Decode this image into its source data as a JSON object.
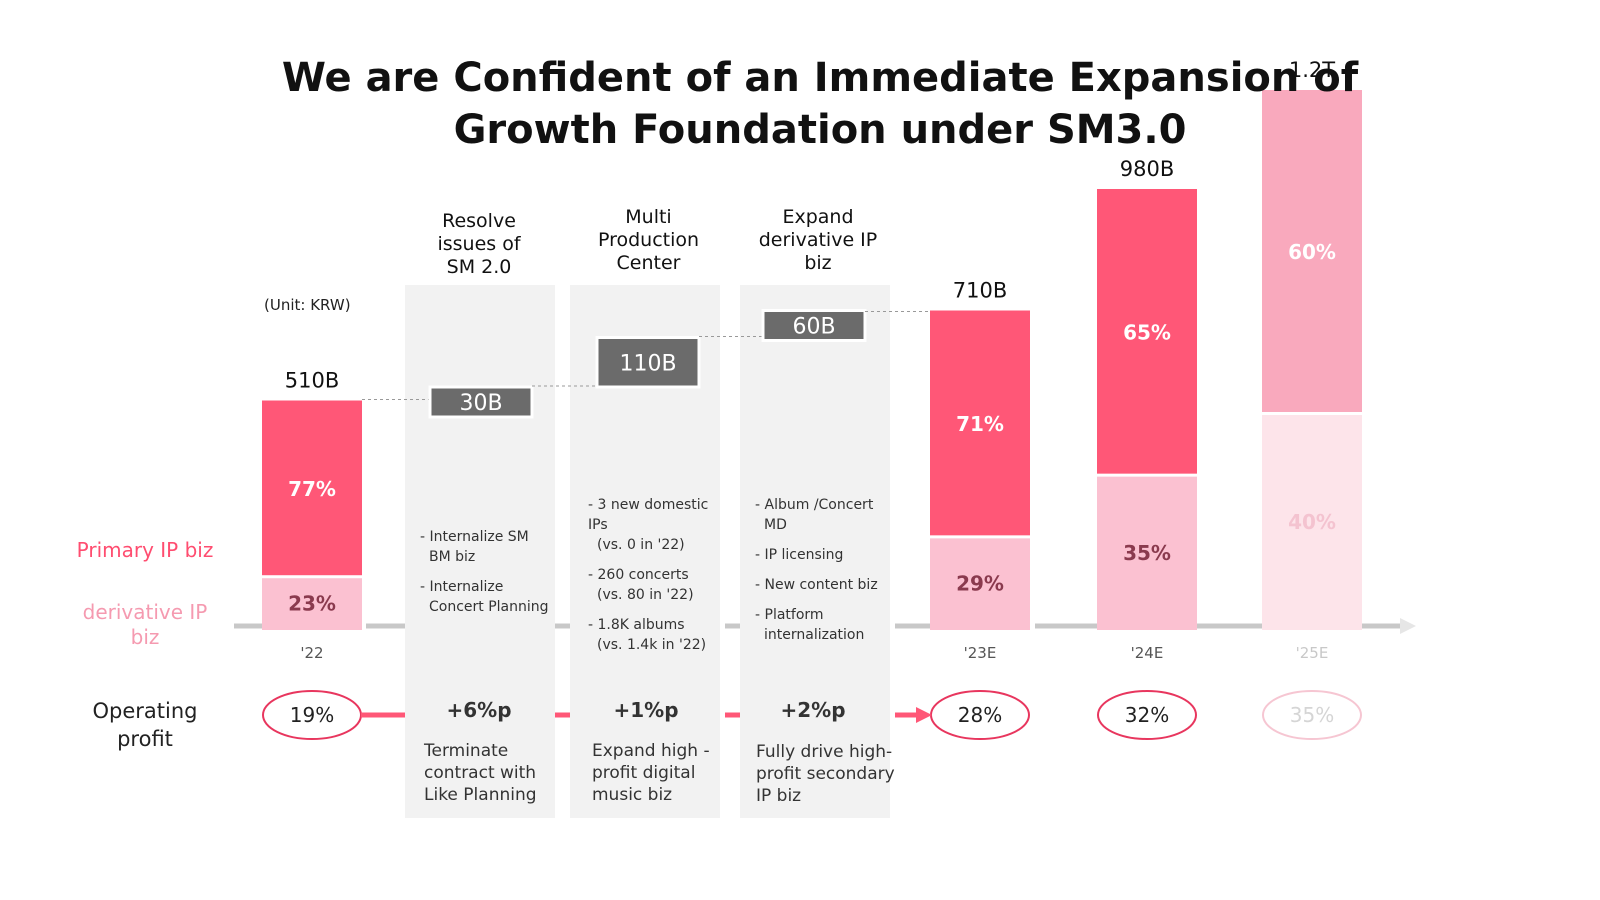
{
  "slide": {
    "title_line1": "We are Confident of an Immediate Expansion of",
    "title_line2": "Growth Foundation under SM3.0",
    "unit": "(Unit: KRW)",
    "legend_primary": "Primary IP biz",
    "legend_derivative_1": "derivative IP",
    "legend_derivative_2": "biz",
    "operating_profit_1": "Operating",
    "operating_profit_2": "profit"
  },
  "colors": {
    "primary": "#ff5777",
    "primary_light": "#f9a9bd",
    "derivative": "#fbc1d1",
    "derivative_light": "#fde4ea",
    "step": "#6b6b6b",
    "panel": "#f2f2f2",
    "axis": "#c8c8c8",
    "oval": "#e8365e"
  },
  "columns": [
    {
      "head": [
        "Resolve",
        "issues of",
        "SM 2.0"
      ],
      "bullets": [
        [
          "- Internalize SM",
          "  BM biz"
        ],
        [
          "- Internalize",
          "  Concert Planning"
        ]
      ],
      "delta": "+6%p",
      "foot": [
        "Terminate",
        "contract with",
        "Like Planning"
      ]
    },
    {
      "head": [
        "Multi",
        "Production",
        "Center"
      ],
      "bullets": [
        [
          "- 3 new domestic IPs",
          "  (vs. 0 in '22)"
        ],
        [
          "- 260 concerts",
          "  (vs. 80 in '22)"
        ],
        [
          "- 1.8K albums",
          "  (vs. 1.4k in '22)"
        ]
      ],
      "delta": "+1%p",
      "foot": [
        "Expand high -",
        "profit digital",
        "music biz"
      ]
    },
    {
      "head": [
        "Expand",
        "derivative IP",
        "biz"
      ],
      "bullets": [
        [
          "- Album /Concert",
          "  MD"
        ],
        [
          "- IP licensing"
        ],
        [
          "- New content biz"
        ],
        [
          "- Platform",
          "  internalization"
        ]
      ],
      "delta": "+2%p",
      "foot": [
        "Fully drive high-",
        "profit secondary",
        "IP biz"
      ]
    }
  ],
  "chart_data": {
    "type": "bar",
    "unit": "KRW",
    "categories": [
      "'22",
      "'23E",
      "'24E",
      "'25E"
    ],
    "totals_labels": [
      "510B",
      "710B",
      "980B",
      "1.2T"
    ],
    "totals": [
      510,
      710,
      980,
      1200
    ],
    "series": [
      {
        "name": "Primary IP biz",
        "values_pct": [
          77,
          71,
          65,
          60
        ],
        "labels": [
          "77%",
          "71%",
          "65%",
          "60%"
        ]
      },
      {
        "name": "derivative IP biz",
        "values_pct": [
          23,
          29,
          35,
          40
        ],
        "labels": [
          "23%",
          "29%",
          "35%",
          "40%"
        ]
      }
    ],
    "operating_profit": {
      "values": [
        "19%",
        "28%",
        "32%",
        "35%"
      ],
      "numeric": [
        19,
        28,
        32,
        35
      ]
    },
    "bridge": [
      {
        "label": "30B",
        "value": 30
      },
      {
        "label": "110B",
        "value": 110
      },
      {
        "label": "60B",
        "value": 60
      }
    ]
  }
}
